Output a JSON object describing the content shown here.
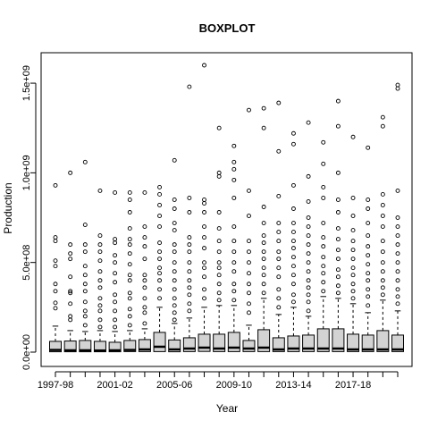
{
  "chart_data": {
    "type": "boxplot",
    "title": "BOXPLOT",
    "xlabel": "Year",
    "ylabel": "Production",
    "ylim": [
      -20000000,
      1610000000
    ],
    "yticks": [
      {
        "value": 0,
        "label": "0.0e+00"
      },
      {
        "value": 500000000,
        "label": "5.0e+08"
      },
      {
        "value": 1000000000,
        "label": "1.0e+09"
      },
      {
        "value": 1500000000,
        "label": "1.5e+09"
      }
    ],
    "xtick_labels": [
      {
        "index": 0,
        "label": "1997-98"
      },
      {
        "index": 4,
        "label": "2001-02"
      },
      {
        "index": 8,
        "label": "2005-06"
      },
      {
        "index": 12,
        "label": "2009-10"
      },
      {
        "index": 16,
        "label": "2013-14"
      },
      {
        "index": 20,
        "label": "2017-18"
      }
    ],
    "grid": false,
    "legend": "none",
    "box_fill": "#d3d3d3",
    "boxes": [
      {
        "q1": 2000000,
        "median": 12000000,
        "q3": 60000000,
        "upper_whisker": 145000000,
        "outliers": [
          245000000,
          275000000,
          340000000,
          380000000,
          480000000,
          510000000,
          620000000,
          640000000,
          930000000
        ]
      },
      {
        "q1": 2000000,
        "median": 10000000,
        "q3": 62000000,
        "upper_whisker": 120000000,
        "outliers": [
          180000000,
          200000000,
          270000000,
          330000000,
          340000000,
          420000000,
          520000000,
          550000000,
          600000000,
          1000000000
        ]
      },
      {
        "q1": 2000000,
        "median": 10000000,
        "q3": 65000000,
        "upper_whisker": 115000000,
        "outliers": [
          150000000,
          200000000,
          230000000,
          280000000,
          340000000,
          380000000,
          430000000,
          480000000,
          560000000,
          600000000,
          710000000,
          1060000000
        ]
      },
      {
        "q1": 2000000,
        "median": 9000000,
        "q3": 60000000,
        "upper_whisker": 120000000,
        "outliers": [
          140000000,
          180000000,
          230000000,
          260000000,
          300000000,
          360000000,
          400000000,
          450000000,
          510000000,
          560000000,
          600000000,
          650000000,
          900000000
        ]
      },
      {
        "q1": 2000000,
        "median": 10000000,
        "q3": 55000000,
        "upper_whisker": 115000000,
        "outliers": [
          140000000,
          180000000,
          230000000,
          280000000,
          320000000,
          390000000,
          440000000,
          500000000,
          540000000,
          610000000,
          630000000,
          890000000
        ]
      },
      {
        "q1": 3000000,
        "median": 12000000,
        "q3": 65000000,
        "upper_whisker": 120000000,
        "outliers": [
          150000000,
          200000000,
          240000000,
          300000000,
          330000000,
          400000000,
          430000000,
          490000000,
          550000000,
          600000000,
          630000000,
          690000000,
          780000000,
          850000000,
          890000000
        ]
      },
      {
        "q1": 3000000,
        "median": 15000000,
        "q3": 70000000,
        "upper_whisker": 130000000,
        "outliers": [
          160000000,
          220000000,
          250000000,
          300000000,
          360000000,
          400000000,
          430000000,
          520000000,
          590000000,
          640000000,
          700000000,
          890000000
        ]
      },
      {
        "q1": 3000000,
        "median": 30000000,
        "q3": 110000000,
        "upper_whisker": 250000000,
        "outliers": [
          300000000,
          350000000,
          400000000,
          440000000,
          470000000,
          520000000,
          560000000,
          610000000,
          700000000,
          760000000,
          820000000,
          880000000,
          920000000
        ]
      },
      {
        "q1": 2000000,
        "median": 15000000,
        "q3": 68000000,
        "upper_whisker": 160000000,
        "outliers": [
          180000000,
          220000000,
          260000000,
          300000000,
          350000000,
          400000000,
          450000000,
          500000000,
          560000000,
          600000000,
          680000000,
          720000000,
          800000000,
          850000000,
          1070000000
        ]
      },
      {
        "q1": 3000000,
        "median": 20000000,
        "q3": 80000000,
        "upper_whisker": 190000000,
        "outliers": [
          230000000,
          270000000,
          320000000,
          360000000,
          400000000,
          450000000,
          500000000,
          560000000,
          600000000,
          640000000,
          780000000,
          860000000,
          1480000000
        ]
      },
      {
        "q1": 4000000,
        "median": 25000000,
        "q3": 100000000,
        "upper_whisker": 250000000,
        "outliers": [
          300000000,
          350000000,
          420000000,
          470000000,
          500000000,
          580000000,
          640000000,
          700000000,
          780000000,
          830000000,
          850000000,
          1600000000
        ]
      },
      {
        "q1": 3000000,
        "median": 20000000,
        "q3": 100000000,
        "upper_whisker": 260000000,
        "outliers": [
          290000000,
          330000000,
          380000000,
          430000000,
          470000000,
          500000000,
          560000000,
          620000000,
          690000000,
          780000000,
          980000000,
          1000000000,
          1250000000
        ]
      },
      {
        "q1": 3000000,
        "median": 25000000,
        "q3": 110000000,
        "upper_whisker": 260000000,
        "outliers": [
          290000000,
          340000000,
          380000000,
          450000000,
          500000000,
          560000000,
          620000000,
          700000000,
          860000000,
          960000000,
          1020000000,
          1060000000,
          1150000000
        ]
      },
      {
        "q1": 3000000,
        "median": 20000000,
        "q3": 65000000,
        "upper_whisker": 150000000,
        "outliers": [
          220000000,
          270000000,
          330000000,
          380000000,
          440000000,
          500000000,
          560000000,
          620000000,
          760000000,
          900000000,
          1350000000
        ]
      },
      {
        "q1": 3000000,
        "median": 25000000,
        "q3": 125000000,
        "upper_whisker": 300000000,
        "outliers": [
          330000000,
          380000000,
          430000000,
          470000000,
          520000000,
          560000000,
          610000000,
          650000000,
          720000000,
          810000000,
          1250000000,
          1360000000
        ]
      },
      {
        "q1": 3000000,
        "median": 15000000,
        "q3": 80000000,
        "upper_whisker": 210000000,
        "outliers": [
          250000000,
          300000000,
          350000000,
          420000000,
          470000000,
          520000000,
          560000000,
          620000000,
          670000000,
          720000000,
          870000000,
          1120000000,
          1390000000
        ]
      },
      {
        "q1": 3000000,
        "median": 20000000,
        "q3": 90000000,
        "upper_whisker": 250000000,
        "outliers": [
          280000000,
          320000000,
          380000000,
          430000000,
          480000000,
          530000000,
          580000000,
          620000000,
          670000000,
          720000000,
          800000000,
          930000000,
          1160000000,
          1220000000
        ]
      },
      {
        "q1": 3000000,
        "median": 20000000,
        "q3": 95000000,
        "upper_whisker": 200000000,
        "outliers": [
          230000000,
          280000000,
          320000000,
          360000000,
          400000000,
          450000000,
          500000000,
          550000000,
          600000000,
          650000000,
          700000000,
          750000000,
          840000000,
          980000000,
          1280000000
        ]
      },
      {
        "q1": 3000000,
        "median": 20000000,
        "q3": 130000000,
        "upper_whisker": 310000000,
        "outliers": [
          340000000,
          390000000,
          440000000,
          480000000,
          530000000,
          590000000,
          640000000,
          720000000,
          860000000,
          920000000,
          1050000000,
          1170000000
        ]
      },
      {
        "q1": 3000000,
        "median": 20000000,
        "q3": 130000000,
        "upper_whisker": 300000000,
        "outliers": [
          330000000,
          370000000,
          420000000,
          460000000,
          520000000,
          570000000,
          630000000,
          690000000,
          780000000,
          850000000,
          1000000000,
          1260000000,
          1400000000
        ]
      },
      {
        "q1": 3000000,
        "median": 15000000,
        "q3": 100000000,
        "upper_whisker": 270000000,
        "outliers": [
          300000000,
          340000000,
          380000000,
          430000000,
          470000000,
          520000000,
          570000000,
          620000000,
          680000000,
          760000000,
          860000000,
          1200000000
        ]
      },
      {
        "q1": 3000000,
        "median": 15000000,
        "q3": 95000000,
        "upper_whisker": 220000000,
        "outliers": [
          260000000,
          310000000,
          350000000,
          400000000,
          440000000,
          490000000,
          540000000,
          590000000,
          650000000,
          720000000,
          800000000,
          850000000,
          1140000000
        ]
      },
      {
        "q1": 3000000,
        "median": 15000000,
        "q3": 120000000,
        "upper_whisker": 290000000,
        "outliers": [
          320000000,
          360000000,
          400000000,
          450000000,
          500000000,
          560000000,
          620000000,
          700000000,
          760000000,
          820000000,
          880000000,
          1260000000,
          1310000000
        ]
      },
      {
        "q1": 3000000,
        "median": 15000000,
        "q3": 95000000,
        "upper_whisker": 230000000,
        "outliers": [
          270000000,
          310000000,
          350000000,
          400000000,
          450000000,
          500000000,
          550000000,
          600000000,
          650000000,
          700000000,
          750000000,
          900000000,
          1470000000,
          1490000000
        ]
      }
    ]
  }
}
